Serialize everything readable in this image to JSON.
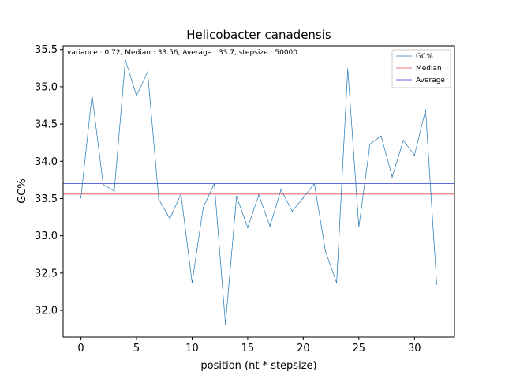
{
  "chart_data": {
    "type": "line",
    "title": "Helicobacter canadensis",
    "xlabel": "position (nt * stepsize)",
    "ylabel": "GC%",
    "annotation": "variance : 0.72, Median : 33.56, Average : 33.7, stepsize : 50000",
    "xlim": [
      -1.6,
      33.6
    ],
    "ylim": [
      31.64,
      35.55
    ],
    "xticks": [
      0,
      5,
      10,
      15,
      20,
      25,
      30
    ],
    "yticks": [
      32.0,
      32.5,
      33.0,
      33.5,
      34.0,
      34.5,
      35.0,
      35.5
    ],
    "grid": false,
    "legend_position": "top-right",
    "series": [
      {
        "name": "GC%",
        "color": "#1f77b4",
        "x": [
          0,
          1,
          2,
          3,
          4,
          5,
          6,
          7,
          8,
          9,
          10,
          11,
          12,
          13,
          14,
          15,
          16,
          17,
          18,
          19,
          20,
          21,
          22,
          23,
          24,
          25,
          26,
          27,
          28,
          29,
          30,
          31,
          32
        ],
        "values": [
          33.51,
          34.89,
          33.69,
          33.6,
          35.36,
          34.88,
          35.2,
          33.49,
          33.23,
          33.56,
          32.37,
          33.38,
          33.7,
          31.81,
          33.53,
          33.11,
          33.55,
          33.13,
          33.62,
          33.33,
          33.51,
          33.7,
          32.79,
          32.37,
          35.24,
          33.12,
          34.23,
          34.34,
          33.79,
          34.28,
          34.08,
          34.69,
          32.35
        ]
      },
      {
        "name": "Median",
        "color": "#e8474a",
        "value": 33.56
      },
      {
        "name": "Average",
        "color": "#2b3bd4",
        "value": 33.7
      }
    ]
  }
}
